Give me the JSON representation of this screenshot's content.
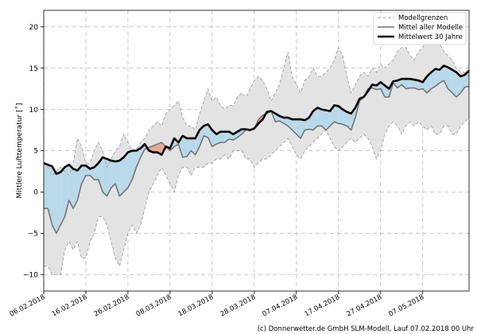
{
  "chart_data": {
    "type": "line",
    "title": "",
    "ylabel": "Mittlere Lufttemperatur [˚]",
    "xlabel": "",
    "ylim": [
      -12,
      22
    ],
    "yticks": [
      -10,
      -5,
      0,
      5,
      10,
      15,
      20
    ],
    "ytick_labels": [
      "−10",
      "−5",
      "0",
      "5",
      "10",
      "15",
      "20"
    ],
    "x_start": "06.02.2018",
    "num_days": 102,
    "xticks": [
      0,
      10,
      20,
      30,
      40,
      50,
      60,
      70,
      80,
      90
    ],
    "xtick_labels": [
      "06.02.2018",
      "16.02.2018",
      "26.02.2018",
      "08.03.2018",
      "18.03.2018",
      "28.03.2018",
      "07.04.2018",
      "17.04.2018",
      "27.04.2018",
      "07.05.2018"
    ],
    "grid": true,
    "legend_position": "top-right",
    "legend": [
      {
        "label": "Modellgrenzen",
        "style": "dashed",
        "color": "#a0a0a0"
      },
      {
        "label": "Mittel aller Modelle",
        "style": "solid",
        "color": "#707070"
      },
      {
        "label": "Mittelwert 30 Jahre",
        "style": "solid-thick",
        "color": "#000000"
      }
    ],
    "fill_colors": {
      "envelope": "#e3e3e3",
      "below_climate": "#b9d9ea",
      "above_climate": "#e8a898"
    },
    "series": [
      {
        "name": "Modellgrenzen (max)",
        "values": [
          3.5,
          3,
          2,
          2.5,
          3,
          2.5,
          2,
          3.5,
          6.5,
          5.5,
          3.5,
          3.5,
          5,
          6,
          5,
          3,
          4,
          5,
          5.5,
          7,
          6,
          5,
          5.2,
          6,
          6.5,
          7.5,
          8,
          8.5,
          8,
          9.5,
          10,
          10.5,
          11,
          9,
          8,
          8,
          7.5,
          9.5,
          11,
          12.5,
          11,
          11.5,
          10.5,
          10,
          10.5,
          10.5,
          11.5,
          12,
          11.5,
          12.5,
          13.5,
          14,
          13.5,
          12.5,
          11,
          12,
          13,
          15,
          17,
          14,
          13,
          12,
          13.5,
          14,
          15,
          14,
          14,
          14.5,
          15,
          16,
          17.5,
          16.5,
          14,
          12,
          13,
          14,
          14.5,
          14,
          15,
          14.5,
          15.5,
          15,
          15.5,
          16,
          17,
          17.5,
          17.5,
          16.5,
          16,
          17,
          17.5,
          18.5,
          19,
          19,
          18,
          17,
          16.5,
          16,
          15,
          14.5,
          14.5,
          14
        ]
      },
      {
        "name": "Modellgrenzen (min)",
        "values": [
          -9,
          -9,
          -10,
          -10,
          -10,
          -7,
          -6,
          -7,
          -6,
          -8,
          -8,
          -6,
          -5,
          -3,
          -3,
          -4,
          -6,
          -8,
          -9,
          -7,
          -5,
          -4,
          -5,
          -4,
          -2,
          0,
          1,
          2,
          3,
          2,
          1,
          0,
          2,
          3,
          3,
          2,
          3,
          3,
          3,
          3.5,
          3.5,
          4,
          4,
          4.5,
          4,
          5,
          5,
          5,
          4,
          4,
          3,
          3.5,
          4,
          4,
          4.5,
          5,
          5.5,
          6,
          6.5,
          5.5,
          4.5,
          4,
          5,
          5.5,
          6,
          6.5,
          7,
          7.5,
          6.5,
          5.5,
          5,
          5.5,
          6,
          6.5,
          6,
          6.5,
          7,
          6.5,
          5.5,
          4,
          5,
          7,
          8,
          8.5,
          8,
          7,
          8,
          8.5,
          8,
          8.5,
          8,
          7.5,
          8,
          7,
          7,
          8,
          8,
          7,
          7,
          8,
          8.5,
          9
        ]
      },
      {
        "name": "Mittel aller Modelle",
        "values": [
          -2,
          -2,
          -4,
          -5,
          -4,
          -3,
          -1,
          -2,
          -1,
          1,
          2,
          2,
          1.5,
          1.5,
          0,
          -0.5,
          0.5,
          1,
          -0.5,
          0,
          0.5,
          1.5,
          3,
          4.2,
          5.2,
          5.4,
          5.6,
          5.8,
          6,
          5.5,
          5,
          5.5,
          5.8,
          4.2,
          4.3,
          5,
          4.5,
          5.5,
          6.8,
          6.6,
          5.5,
          5.8,
          6,
          6,
          6.4,
          6.3,
          6.6,
          7,
          7.5,
          7.5,
          7.6,
          8.8,
          9.3,
          9.5,
          9.8,
          8.5,
          8.6,
          8.3,
          8,
          7.5,
          7,
          6.5,
          7.5,
          7.6,
          7.5,
          8,
          8,
          7.5,
          8,
          8.5,
          8.3,
          8.2,
          8,
          7.5,
          9,
          11,
          11.5,
          12.5,
          12.6,
          12.4,
          12.5,
          11.5,
          11.5,
          13.2,
          12.6,
          13,
          12.5,
          12.6,
          12.6,
          12.4,
          12.5,
          12,
          12.5,
          12.8,
          13.2,
          13.5,
          12.5,
          12,
          11.5,
          12,
          12.7,
          12.8
        ]
      },
      {
        "name": "Mittelwert 30 Jahre",
        "values": [
          3.5,
          3.3,
          3.1,
          2.2,
          2.4,
          3,
          3.3,
          2.8,
          2.6,
          3.2,
          3.2,
          2.8,
          3,
          3.5,
          4.2,
          4,
          3.8,
          3.7,
          3.8,
          4.2,
          4.8,
          5,
          5,
          5.3,
          5.8,
          5,
          4.8,
          4.8,
          4.5,
          5.5,
          5.3,
          6.5,
          6,
          6.8,
          6.5,
          6.5,
          6.5,
          7.5,
          8,
          8.2,
          7.5,
          7,
          7.3,
          7.3,
          7.3,
          7,
          7.3,
          7.6,
          7.6,
          7.5,
          7.7,
          8.3,
          8.8,
          9.7,
          9.8,
          9.5,
          9.2,
          9,
          9,
          8.8,
          8.8,
          8.8,
          8.7,
          9,
          9.8,
          10.2,
          10,
          9.9,
          9.8,
          10.5,
          10.4,
          10,
          9.7,
          9.5,
          10.2,
          11.3,
          11.5,
          12.2,
          13,
          12.9,
          13.3,
          12.9,
          12.5,
          13.4,
          13.5,
          13.7,
          13.7,
          13.7,
          13.6,
          13.5,
          13.3,
          14,
          14.5,
          14.9,
          14.8,
          15.3,
          15.1,
          14.8,
          14.5,
          14,
          14.2,
          14.7
        ]
      }
    ]
  },
  "footer": {
    "copyright": "(c) Donnerwetter.de GmbH SLM-Modell, Lauf 07.02.2018 00 Uhr"
  }
}
